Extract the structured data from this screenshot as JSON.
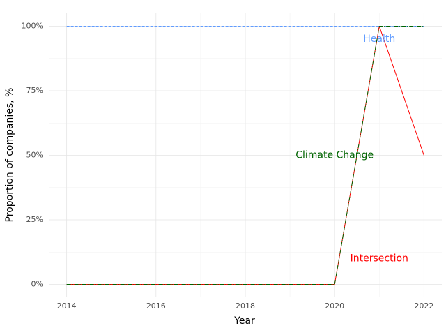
{
  "chart_data": {
    "type": "line",
    "title": "",
    "xlabel": "Year",
    "ylabel": "Proportion of companies, %",
    "xlim": [
      2013.6,
      2022.4
    ],
    "ylim": [
      -0.05,
      1.05
    ],
    "x_ticks": [
      2014,
      2016,
      2018,
      2020,
      2022
    ],
    "x_tick_labels": [
      "2014",
      "2016",
      "2018",
      "2020",
      "2022"
    ],
    "y_ticks": [
      0,
      0.25,
      0.5,
      0.75,
      1.0
    ],
    "y_tick_labels": [
      "0%",
      "25%",
      "50%",
      "75%",
      "100%"
    ],
    "grid": true,
    "x": [
      2014,
      2015,
      2016,
      2017,
      2018,
      2019,
      2020,
      2021,
      2022
    ],
    "series": [
      {
        "name": "Health",
        "color": "#619CFF",
        "dash": "dashed",
        "values": [
          1,
          1,
          1,
          1,
          1,
          1,
          1,
          1,
          1
        ]
      },
      {
        "name": "Intersection",
        "color": "#FF0000",
        "dash": "solid",
        "values": [
          0,
          0,
          0,
          0,
          0,
          0,
          0,
          1,
          0.5
        ]
      },
      {
        "name": "Climate Change",
        "color": "#006400",
        "dash": "dashdot",
        "values": [
          0,
          0,
          0,
          0,
          0,
          0,
          0,
          1,
          1
        ]
      }
    ],
    "annotations": [
      {
        "text": "Health",
        "x": 2021,
        "y": 0.95,
        "color": "#619CFF"
      },
      {
        "text": "Climate Change",
        "x": 2020,
        "y": 0.5,
        "color": "#006400"
      },
      {
        "text": "Intersection",
        "x": 2021,
        "y": 0.1,
        "color": "#FF0000"
      }
    ]
  }
}
